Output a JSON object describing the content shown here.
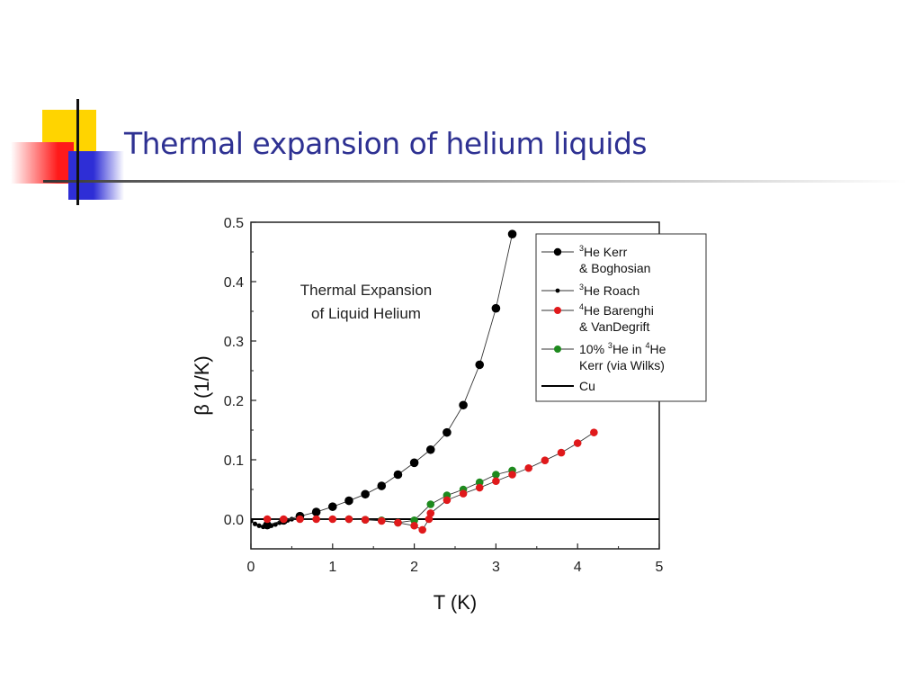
{
  "slide": {
    "title": "Thermal expansion of helium liquids",
    "title_color": "#2e3192"
  },
  "chart_data": {
    "type": "scatter",
    "xlabel": "T (K)",
    "ylabel": "β (1/K)",
    "xlim": [
      0,
      5
    ],
    "ylim": [
      -0.05,
      0.5
    ],
    "x_ticks": [
      "0",
      "1",
      "2",
      "3",
      "4",
      "5"
    ],
    "y_ticks": [
      "0.0",
      "0.1",
      "0.2",
      "0.3",
      "0.4",
      "0.5"
    ],
    "annotation": [
      "Thermal Expansion",
      "of Liquid Helium"
    ],
    "legend_position": "top-right",
    "series": [
      {
        "name": "3He Kerr & Boghosian",
        "legend_lines": [
          "3He Kerr",
          "& Boghosian"
        ],
        "color": "#000000",
        "marker": "large-dot",
        "connected": true,
        "x": [
          0.2,
          0.4,
          0.6,
          0.8,
          1.0,
          1.2,
          1.4,
          1.6,
          1.8,
          2.0,
          2.2,
          2.4,
          2.6,
          2.8,
          3.0,
          3.2
        ],
        "y": [
          -0.01,
          -0.002,
          0.005,
          0.012,
          0.021,
          0.031,
          0.042,
          0.056,
          0.075,
          0.095,
          0.117,
          0.146,
          0.192,
          0.26,
          0.355,
          0.48
        ]
      },
      {
        "name": "3He Roach",
        "legend_lines": [
          "3He Roach"
        ],
        "color": "#000000",
        "marker": "small-dot",
        "connected": true,
        "x": [
          0.0,
          0.05,
          0.1,
          0.15,
          0.2,
          0.25,
          0.3,
          0.35,
          0.4,
          0.45,
          0.5
        ],
        "y": [
          -0.003,
          -0.008,
          -0.011,
          -0.013,
          -0.013,
          -0.011,
          -0.009,
          -0.006,
          -0.004,
          -0.002,
          0.0
        ]
      },
      {
        "name": "4He Barenghi & VanDegrift",
        "legend_lines": [
          "4He Barenghi",
          "& VanDegrift"
        ],
        "color": "#e0191b",
        "marker": "dot",
        "connected": true,
        "x": [
          0.2,
          0.4,
          0.6,
          0.8,
          1.0,
          1.2,
          1.4,
          1.6,
          1.8,
          2.0,
          2.1,
          2.18,
          2.2,
          2.4,
          2.6,
          2.8,
          3.0,
          3.2,
          3.4,
          3.6,
          3.8,
          4.0,
          4.2
        ],
        "y": [
          0.0,
          0.0,
          0.0,
          0.0,
          0.0,
          0.0,
          -0.001,
          -0.003,
          -0.006,
          -0.011,
          -0.018,
          0.0,
          0.01,
          0.032,
          0.043,
          0.053,
          0.064,
          0.075,
          0.086,
          0.099,
          0.112,
          0.128,
          0.146
        ]
      },
      {
        "name": "10% 3He in 4He Kerr (via Wilks)",
        "legend_lines": [
          "10% 3He in 4He",
          "Kerr (via Wilks)"
        ],
        "color": "#1e8a1e",
        "marker": "dot",
        "connected": true,
        "x": [
          1.2,
          1.4,
          1.6,
          1.8,
          2.0,
          2.2,
          2.4,
          2.6,
          2.8,
          3.0,
          3.2
        ],
        "y": [
          0.0,
          -0.001,
          -0.002,
          -0.006,
          -0.002,
          0.025,
          0.04,
          0.05,
          0.062,
          0.075,
          0.082
        ]
      },
      {
        "name": "Cu",
        "legend_lines": [
          "Cu"
        ],
        "color": "#000000",
        "marker": "none",
        "connected": true,
        "x": [
          0,
          5
        ],
        "y": [
          0,
          0
        ]
      }
    ]
  }
}
